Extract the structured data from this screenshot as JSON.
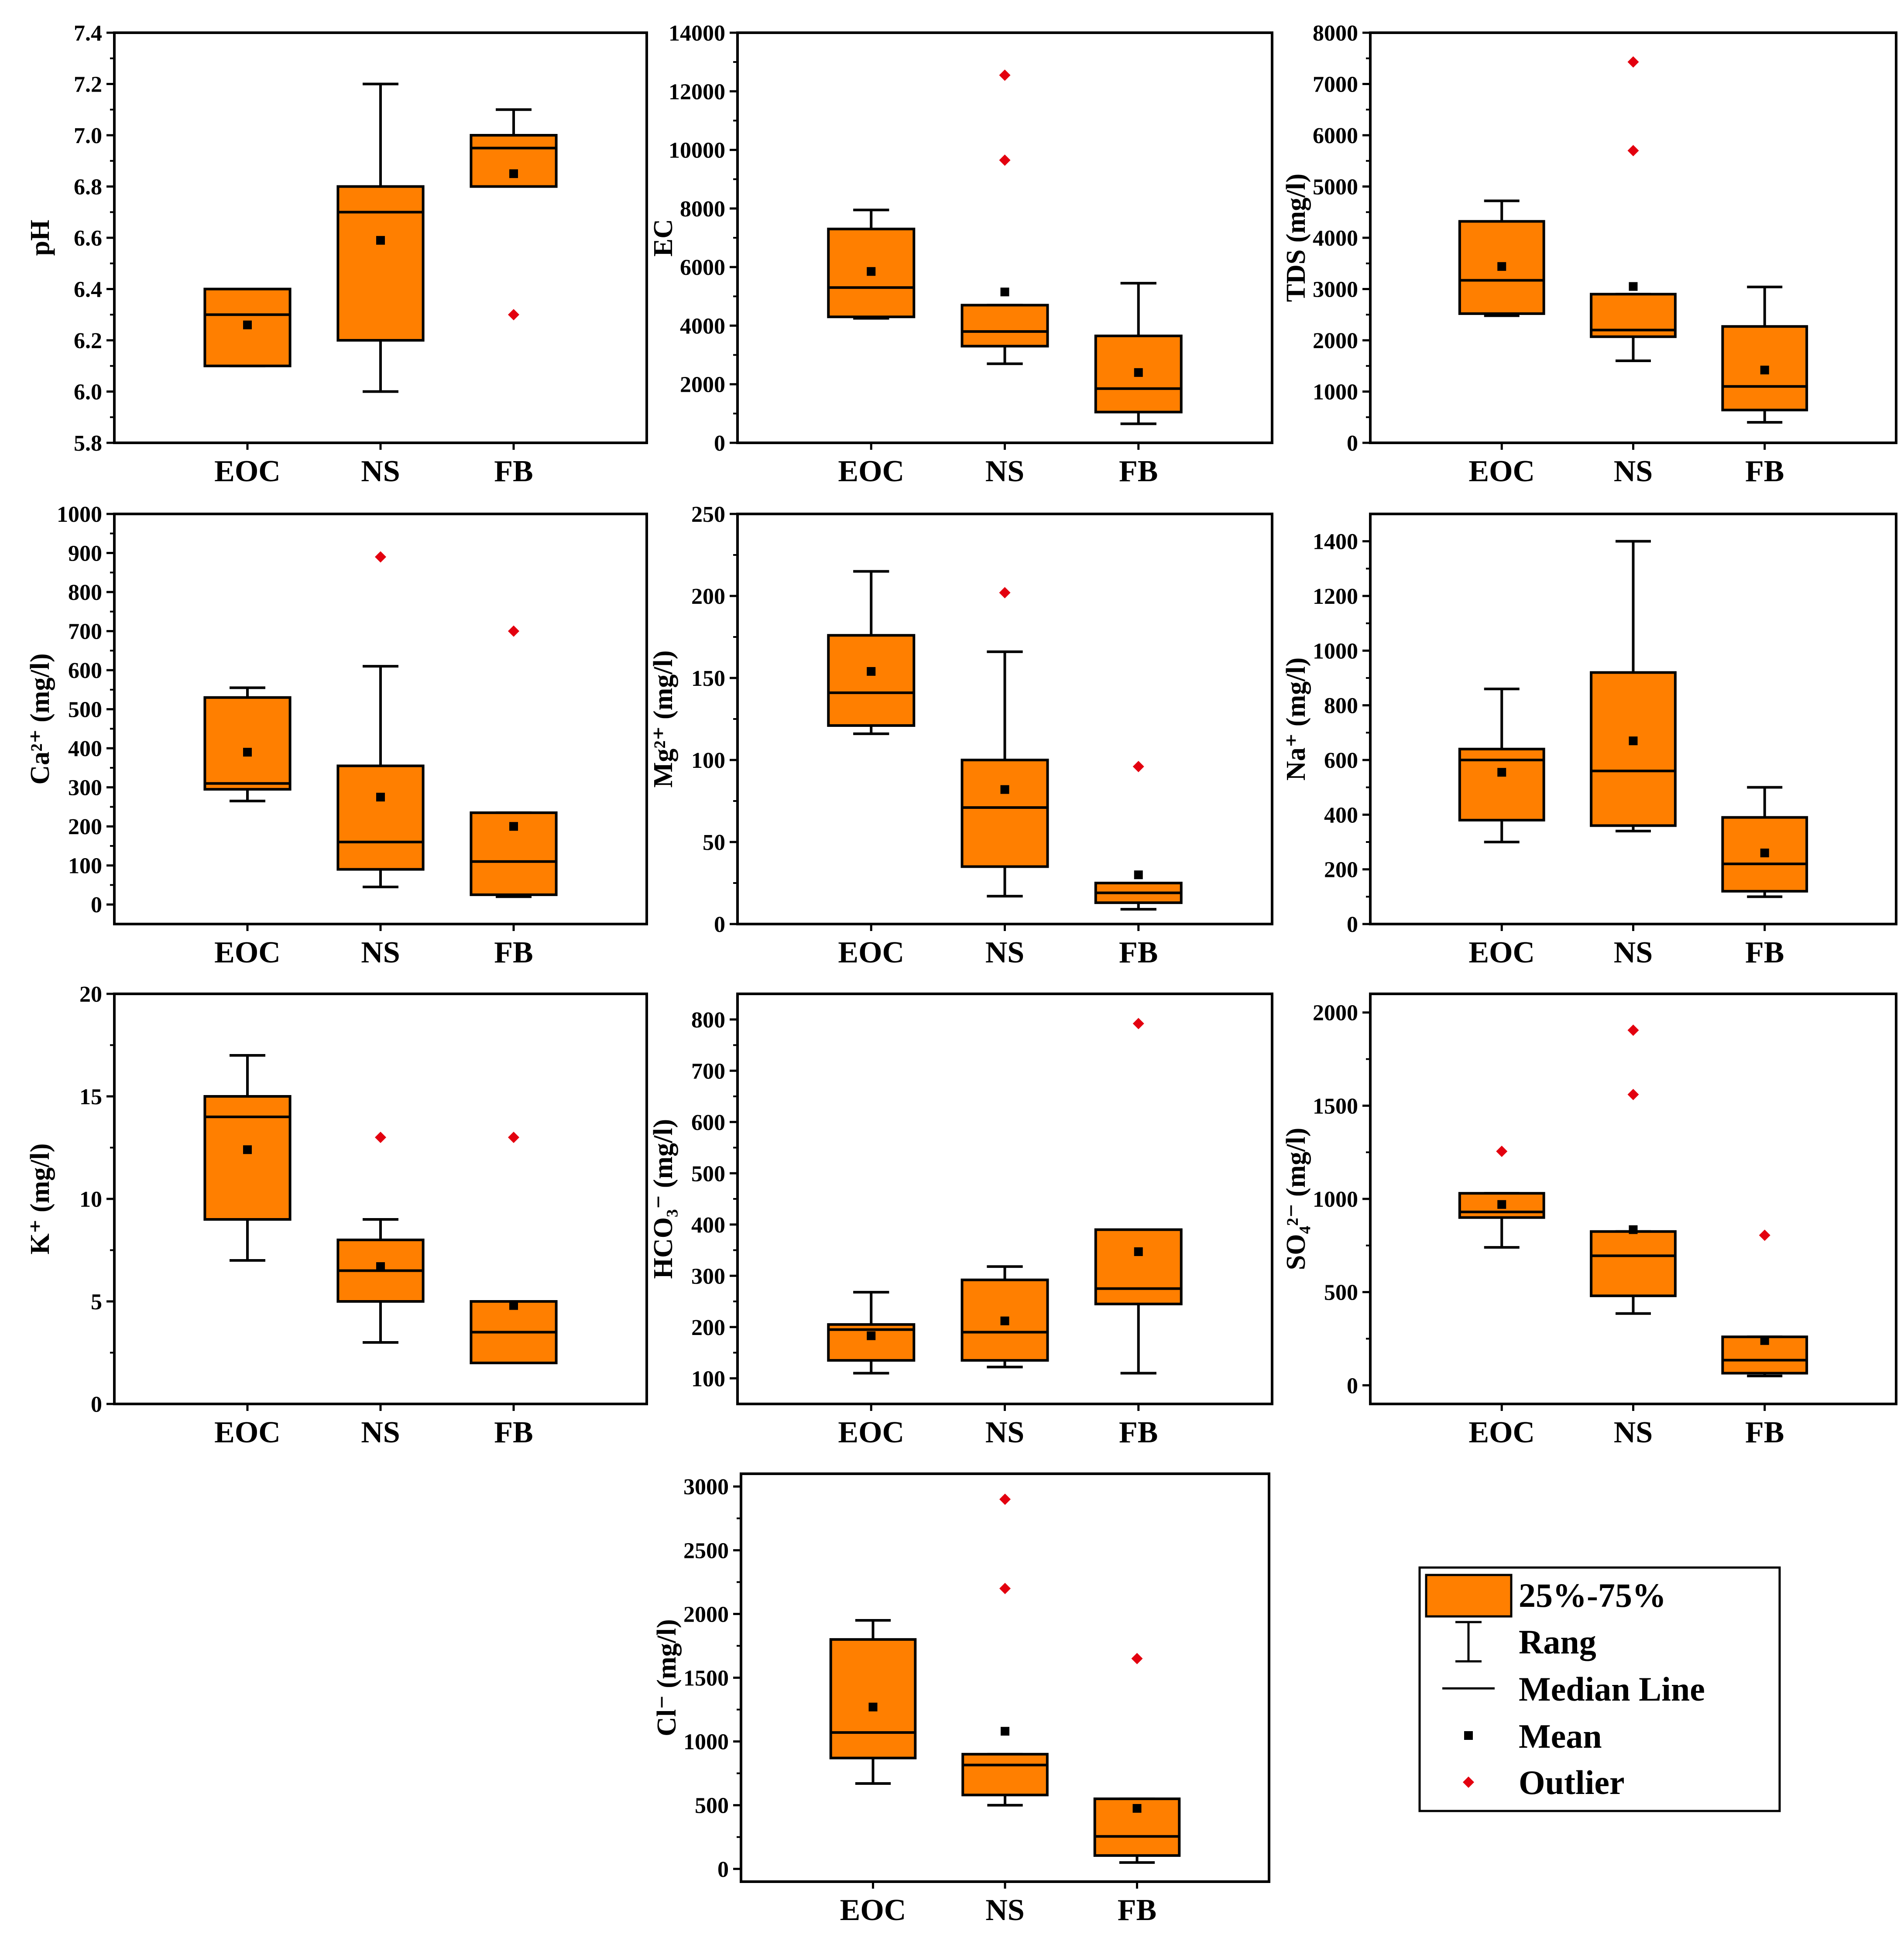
{
  "colors": {
    "box": "#FF7F00",
    "outlier": "#E3000F",
    "mean": "#000000",
    "line": "#000000"
  },
  "legend": {
    "box_label": "25%-75%",
    "range_label": "Rang",
    "median_label": "Median Line",
    "mean_label": "Mean",
    "outlier_label": "Outlier"
  },
  "chart_data": [
    {
      "type": "box",
      "id": "ph",
      "ylabel": "pH",
      "ylim": [
        5.8,
        7.4
      ],
      "yticks": [
        "5.8",
        "6.0",
        "6.2",
        "6.4",
        "6.6",
        "6.8",
        "7.0",
        "7.2",
        "7.4"
      ],
      "categories": [
        "EOC",
        "NS",
        "FB"
      ],
      "boxes": [
        {
          "min": 6.1,
          "q1": 6.1,
          "median": 6.3,
          "q3": 6.4,
          "max": 6.4,
          "mean": 6.26,
          "outliers": []
        },
        {
          "min": 6.0,
          "q1": 6.2,
          "median": 6.7,
          "q3": 6.8,
          "max": 7.2,
          "mean": 6.59,
          "outliers": []
        },
        {
          "min": 6.8,
          "q1": 6.8,
          "median": 6.95,
          "q3": 7.0,
          "max": 7.1,
          "mean": 6.85,
          "outliers": [
            6.3
          ]
        }
      ]
    },
    {
      "type": "box",
      "id": "ec",
      "ylabel": "EC",
      "ylim": [
        0,
        14000
      ],
      "yticks": [
        "0",
        "2000",
        "4000",
        "6000",
        "8000",
        "10000",
        "12000",
        "14000"
      ],
      "categories": [
        "EOC",
        "NS",
        "FB"
      ],
      "boxes": [
        {
          "min": 4250,
          "q1": 4300,
          "median": 5300,
          "q3": 7300,
          "max": 7950,
          "mean": 5850,
          "outliers": []
        },
        {
          "min": 2700,
          "q1": 3300,
          "median": 3800,
          "q3": 4700,
          "max": 4700,
          "mean": 5150,
          "outliers": [
            9650,
            12550
          ]
        },
        {
          "min": 650,
          "q1": 1050,
          "median": 1850,
          "q3": 3650,
          "max": 5450,
          "mean": 2400,
          "outliers": []
        }
      ]
    },
    {
      "type": "box",
      "id": "tds",
      "ylabel": "TDS (mg/l)",
      "ylim": [
        0,
        8000
      ],
      "yticks": [
        "0",
        "1000",
        "2000",
        "3000",
        "4000",
        "5000",
        "6000",
        "7000",
        "8000"
      ],
      "categories": [
        "EOC",
        "NS",
        "FB"
      ],
      "boxes": [
        {
          "min": 2480,
          "q1": 2520,
          "median": 3170,
          "q3": 4320,
          "max": 4720,
          "mean": 3440,
          "outliers": []
        },
        {
          "min": 1600,
          "q1": 2070,
          "median": 2200,
          "q3": 2900,
          "max": 2900,
          "mean": 3050,
          "outliers": [
            5700,
            7430
          ]
        },
        {
          "min": 400,
          "q1": 640,
          "median": 1100,
          "q3": 2270,
          "max": 3040,
          "mean": 1420,
          "outliers": []
        }
      ]
    },
    {
      "type": "box",
      "id": "ca",
      "ylabel": "Ca²⁺ (mg/l)",
      "ylim": [
        -50,
        1000
      ],
      "yticks": [
        "0",
        "100",
        "200",
        "300",
        "400",
        "500",
        "600",
        "700",
        "800",
        "900",
        "1000"
      ],
      "categories": [
        "EOC",
        "NS",
        "FB"
      ],
      "boxes": [
        {
          "min": 265,
          "q1": 295,
          "median": 310,
          "q3": 530,
          "max": 555,
          "mean": 390,
          "outliers": []
        },
        {
          "min": 45,
          "q1": 90,
          "median": 160,
          "q3": 355,
          "max": 610,
          "mean": 275,
          "outliers": [
            890
          ]
        },
        {
          "min": 20,
          "q1": 25,
          "median": 110,
          "q3": 235,
          "max": 235,
          "mean": 200,
          "outliers": [
            700
          ]
        }
      ]
    },
    {
      "type": "box",
      "id": "mg",
      "ylabel": "Mg²⁺ (mg/l)",
      "ylim": [
        0,
        250
      ],
      "yticks": [
        "0",
        "50",
        "100",
        "150",
        "200",
        "250"
      ],
      "categories": [
        "EOC",
        "NS",
        "FB"
      ],
      "boxes": [
        {
          "min": 116,
          "q1": 121,
          "median": 141,
          "q3": 176,
          "max": 215,
          "mean": 154,
          "outliers": []
        },
        {
          "min": 17,
          "q1": 35,
          "median": 71,
          "q3": 100,
          "max": 166,
          "mean": 82,
          "outliers": [
            202
          ]
        },
        {
          "min": 9,
          "q1": 13,
          "median": 19,
          "q3": 25,
          "max": 25,
          "mean": 30,
          "outliers": [
            96
          ]
        }
      ]
    },
    {
      "type": "box",
      "id": "na",
      "ylabel": "Na⁺ (mg/l)",
      "ylim": [
        0,
        1500
      ],
      "yticks": [
        "0",
        "200",
        "400",
        "600",
        "800",
        "1000",
        "1200",
        "1400"
      ],
      "categories": [
        "EOC",
        "NS",
        "FB"
      ],
      "boxes": [
        {
          "min": 300,
          "q1": 380,
          "median": 600,
          "q3": 640,
          "max": 860,
          "mean": 555,
          "outliers": []
        },
        {
          "min": 340,
          "q1": 360,
          "median": 560,
          "q3": 920,
          "max": 1400,
          "mean": 670,
          "outliers": []
        },
        {
          "min": 100,
          "q1": 120,
          "median": 220,
          "q3": 390,
          "max": 500,
          "mean": 260,
          "outliers": []
        }
      ]
    },
    {
      "type": "box",
      "id": "k",
      "ylabel": "K⁺ (mg/l)",
      "ylim": [
        0,
        20
      ],
      "yticks": [
        "0",
        "5",
        "10",
        "15",
        "20"
      ],
      "categories": [
        "EOC",
        "NS",
        "FB"
      ],
      "boxes": [
        {
          "min": 7,
          "q1": 9,
          "median": 14,
          "q3": 15,
          "max": 17,
          "mean": 12.4,
          "outliers": []
        },
        {
          "min": 3,
          "q1": 5,
          "median": 6.5,
          "q3": 8,
          "max": 9,
          "mean": 6.7,
          "outliers": [
            13
          ]
        },
        {
          "min": 2,
          "q1": 2,
          "median": 3.5,
          "q3": 5,
          "max": 5,
          "mean": 4.8,
          "outliers": [
            13
          ]
        }
      ]
    },
    {
      "type": "box",
      "id": "hco3",
      "ylabel": "HCO₃⁻ (mg/l)",
      "ylim": [
        50,
        850
      ],
      "yticks": [
        "100",
        "200",
        "300",
        "400",
        "500",
        "600",
        "700",
        "800"
      ],
      "categories": [
        "EOC",
        "NS",
        "FB"
      ],
      "boxes": [
        {
          "min": 110,
          "q1": 135,
          "median": 195,
          "q3": 205,
          "max": 268,
          "mean": 183,
          "outliers": []
        },
        {
          "min": 122,
          "q1": 135,
          "median": 190,
          "q3": 292,
          "max": 318,
          "mean": 212,
          "outliers": []
        },
        {
          "min": 110,
          "q1": 245,
          "median": 275,
          "q3": 390,
          "max": 390,
          "mean": 347,
          "outliers": [
            792
          ]
        }
      ]
    },
    {
      "type": "box",
      "id": "so4",
      "ylabel": "SO₄²⁻ (mg/l)",
      "ylim": [
        -100,
        2100
      ],
      "yticks": [
        "0",
        "500",
        "1000",
        "1500",
        "2000"
      ],
      "categories": [
        "EOC",
        "NS",
        "FB"
      ],
      "boxes": [
        {
          "min": 740,
          "q1": 900,
          "median": 930,
          "q3": 1030,
          "max": 1030,
          "mean": 970,
          "outliers": [
            1255
          ]
        },
        {
          "min": 385,
          "q1": 480,
          "median": 695,
          "q3": 825,
          "max": 825,
          "mean": 835,
          "outliers": [
            1560,
            1905
          ]
        },
        {
          "min": 50,
          "q1": 65,
          "median": 135,
          "q3": 260,
          "max": 260,
          "mean": 240,
          "outliers": [
            805
          ]
        }
      ]
    },
    {
      "type": "box",
      "id": "cl",
      "ylabel": "Cl⁻ (mg/l)",
      "ylim": [
        -100,
        3100
      ],
      "yticks": [
        "0",
        "500",
        "1000",
        "1500",
        "2000",
        "2500",
        "3000"
      ],
      "categories": [
        "EOC",
        "NS",
        "FB"
      ],
      "boxes": [
        {
          "min": 670,
          "q1": 870,
          "median": 1070,
          "q3": 1800,
          "max": 1950,
          "mean": 1270,
          "outliers": []
        },
        {
          "min": 500,
          "q1": 580,
          "median": 815,
          "q3": 900,
          "max": 900,
          "mean": 1080,
          "outliers": [
            2200,
            2900
          ]
        },
        {
          "min": 50,
          "q1": 105,
          "median": 255,
          "q3": 550,
          "max": 550,
          "mean": 475,
          "outliers": [
            1650
          ]
        }
      ]
    }
  ]
}
